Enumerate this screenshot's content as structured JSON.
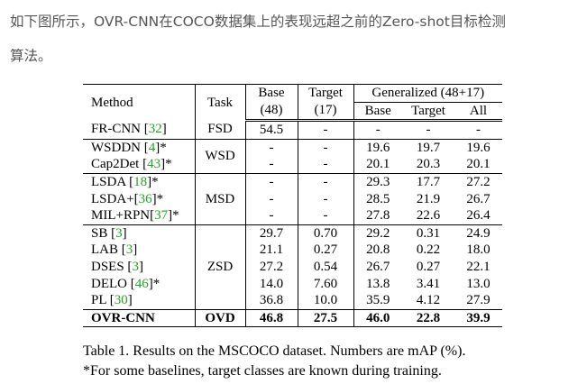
{
  "intro": {
    "line1": "如下图所示，OVR-CNN在COCO数据集上的表现远超之前的Zero-shot目标检测",
    "line2": "算法。"
  },
  "table": {
    "header": {
      "method": "Method",
      "task": "Task",
      "base": "Base",
      "base_count": "(48)",
      "target": "Target",
      "target_count": "(17)",
      "generalized": "Generalized (48+17)",
      "gen_base": "Base",
      "gen_target": "Target",
      "gen_all": "All"
    },
    "groups": [
      {
        "task": "FSD",
        "rows": [
          {
            "method": {
              "name": "FR-CNN [",
              "ref": "32",
              "close": "]"
            },
            "values": [
              "54.5",
              "-",
              "-",
              "-",
              "-"
            ]
          }
        ]
      },
      {
        "task": "WSD",
        "rows": [
          {
            "method": {
              "name": "WSDDN [",
              "ref": "4",
              "close": "]*"
            },
            "values": [
              "-",
              "-",
              "19.6",
              "19.7",
              "19.6"
            ]
          },
          {
            "method": {
              "name": "Cap2Det [",
              "ref": "43",
              "close": "]*"
            },
            "values": [
              "-",
              "-",
              "20.1",
              "20.3",
              "20.1"
            ]
          }
        ]
      },
      {
        "task": "MSD",
        "rows": [
          {
            "method": {
              "name": "LSDA [",
              "ref": "18",
              "close": "]*"
            },
            "values": [
              "-",
              "-",
              "29.3",
              "17.7",
              "27.2"
            ]
          },
          {
            "method": {
              "name": "LSDA+[",
              "ref": "36",
              "close": "]*"
            },
            "values": [
              "-",
              "-",
              "28.5",
              "21.9",
              "26.7"
            ]
          },
          {
            "method": {
              "name": "MIL+RPN[",
              "ref": "37",
              "close": "]*"
            },
            "values": [
              "-",
              "-",
              "27.8",
              "22.6",
              "26.4"
            ]
          }
        ]
      },
      {
        "task": "ZSD",
        "rows": [
          {
            "method": {
              "name": "SB [",
              "ref": "3",
              "close": "]"
            },
            "values": [
              "29.7",
              "0.70",
              "29.2",
              "0.31",
              "24.9"
            ]
          },
          {
            "method": {
              "name": "LAB [",
              "ref": "3",
              "close": "]"
            },
            "values": [
              "21.1",
              "0.27",
              "20.8",
              "0.22",
              "18.0"
            ]
          },
          {
            "method": {
              "name": "DSES [",
              "ref": "3",
              "close": "]"
            },
            "values": [
              "27.2",
              "0.54",
              "26.7",
              "0.27",
              "22.1"
            ]
          },
          {
            "method": {
              "name": "DELO [",
              "ref": "46",
              "close": "]*"
            },
            "values": [
              "14.0",
              "7.60",
              "13.8",
              "3.41",
              "13.0"
            ]
          },
          {
            "method": {
              "name": "PL [",
              "ref": "30",
              "close": "]"
            },
            "values": [
              "36.8",
              "10.0",
              "35.9",
              "4.12",
              "27.9"
            ]
          }
        ]
      },
      {
        "task": "OVD",
        "bold": true,
        "rows": [
          {
            "method": {
              "name": "OVR-CNN"
            },
            "values": [
              "46.8",
              "27.5",
              "46.0",
              "22.8",
              "39.9"
            ]
          }
        ]
      }
    ]
  },
  "caption": {
    "line1": "Table 1. Results on the MSCOCO dataset. Numbers are mAP (%).",
    "line2": "*For some baselines, target classes are known during training."
  }
}
